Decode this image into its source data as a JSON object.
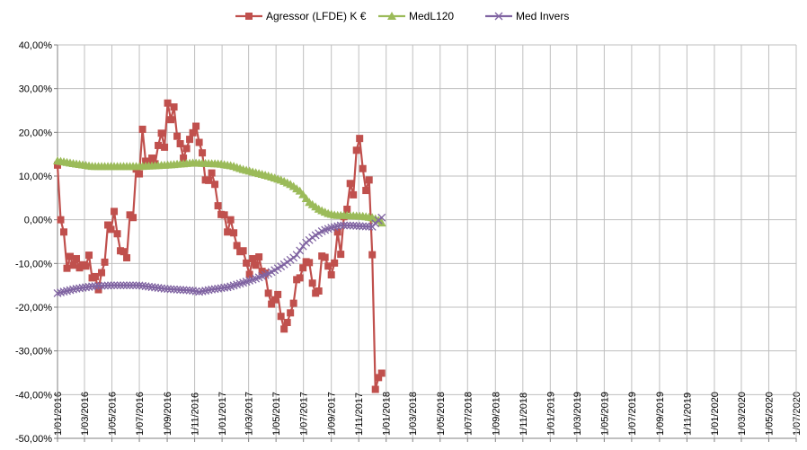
{
  "chart_data": {
    "type": "line",
    "title": "",
    "xlabel": "",
    "ylabel": "",
    "grid": true,
    "legend_position": "top",
    "y_ticks": [
      "40,00%",
      "30,00%",
      "20,00%",
      "10,00%",
      "0,00%",
      "-10,00%",
      "-20,00%",
      "-30,00%",
      "-40,00%",
      "-50,00%"
    ],
    "ylim": [
      -50,
      40
    ],
    "x_ticks": [
      "1/01/2016",
      "1/03/2016",
      "1/05/2016",
      "1/07/2016",
      "1/09/2016",
      "1/11/2016",
      "1/01/2017",
      "1/03/2017",
      "1/05/2017",
      "1/07/2017",
      "1/09/2017",
      "1/11/2017",
      "1/01/2018",
      "1/03/2018",
      "1/05/2018",
      "1/07/2018",
      "1/09/2018",
      "1/11/2018",
      "1/01/2019",
      "1/03/2019",
      "1/05/2019",
      "1/07/2019",
      "1/09/2019",
      "1/11/2019",
      "1/01/2020",
      "1/03/2020",
      "1/05/2020",
      "1/07/2020"
    ],
    "x_start": "2016-01-01",
    "x_end": "2020-07-01",
    "x_unit": "days since 2016-01-01",
    "series": [
      {
        "name": "Agressor (LFDE) K €",
        "color": "#C0504D",
        "marker": "square",
        "points": [
          [
            0,
            12.5
          ],
          [
            7,
            0.0
          ],
          [
            14,
            -2.8
          ],
          [
            21,
            -11.1
          ],
          [
            28,
            -8.4
          ],
          [
            35,
            -10.4
          ],
          [
            42,
            -8.9
          ],
          [
            49,
            -11.0
          ],
          [
            56,
            -10.3
          ],
          [
            63,
            -10.6
          ],
          [
            70,
            -8.1
          ],
          [
            77,
            -13.3
          ],
          [
            84,
            -13.0
          ],
          [
            91,
            -16.0
          ],
          [
            98,
            -12.1
          ],
          [
            105,
            -9.7
          ],
          [
            112,
            -1.2
          ],
          [
            119,
            -2.2
          ],
          [
            126,
            1.9
          ],
          [
            133,
            -3.2
          ],
          [
            140,
            -7.1
          ],
          [
            147,
            -7.3
          ],
          [
            154,
            -8.7
          ],
          [
            161,
            1.1
          ],
          [
            168,
            0.5
          ],
          [
            175,
            11.6
          ],
          [
            182,
            10.5
          ],
          [
            189,
            20.7
          ],
          [
            196,
            13.4
          ],
          [
            203,
            12.4
          ],
          [
            210,
            14.1
          ],
          [
            217,
            12.8
          ],
          [
            224,
            17.0
          ],
          [
            231,
            19.8
          ],
          [
            238,
            16.6
          ],
          [
            245,
            26.7
          ],
          [
            252,
            22.9
          ],
          [
            259,
            25.8
          ],
          [
            266,
            19.1
          ],
          [
            273,
            17.4
          ],
          [
            280,
            14.1
          ],
          [
            287,
            16.3
          ],
          [
            294,
            18.4
          ],
          [
            301,
            19.9
          ],
          [
            308,
            21.4
          ],
          [
            315,
            17.7
          ],
          [
            322,
            15.3
          ],
          [
            329,
            9.1
          ],
          [
            336,
            9.0
          ],
          [
            343,
            10.7
          ],
          [
            350,
            8.1
          ],
          [
            357,
            3.2
          ],
          [
            364,
            1.2
          ],
          [
            371,
            1.1
          ],
          [
            378,
            -2.8
          ],
          [
            385,
            0.0
          ],
          [
            392,
            -3.0
          ],
          [
            399,
            -5.9
          ],
          [
            406,
            -7.3
          ],
          [
            413,
            -7.1
          ],
          [
            420,
            -9.9
          ],
          [
            427,
            -12.5
          ],
          [
            434,
            -8.9
          ],
          [
            441,
            -10.4
          ],
          [
            448,
            -8.5
          ],
          [
            455,
            -11.8
          ],
          [
            462,
            -12.2
          ],
          [
            469,
            -16.8
          ],
          [
            476,
            -19.3
          ],
          [
            483,
            -18.3
          ],
          [
            490,
            -17.1
          ],
          [
            497,
            -22.1
          ],
          [
            504,
            -25.0
          ],
          [
            511,
            -23.5
          ],
          [
            518,
            -21.3
          ],
          [
            525,
            -19.1
          ],
          [
            532,
            -13.7
          ],
          [
            539,
            -13.3
          ],
          [
            546,
            -11.0
          ],
          [
            553,
            -9.6
          ],
          [
            560,
            -9.8
          ],
          [
            567,
            -14.5
          ],
          [
            574,
            -16.8
          ],
          [
            581,
            -16.3
          ],
          [
            588,
            -8.3
          ],
          [
            595,
            -8.6
          ],
          [
            602,
            -10.6
          ],
          [
            609,
            -12.6
          ],
          [
            616,
            -9.9
          ],
          [
            623,
            -2.8
          ],
          [
            630,
            -7.9
          ],
          [
            637,
            0.7
          ],
          [
            644,
            2.4
          ],
          [
            651,
            8.3
          ],
          [
            658,
            5.7
          ],
          [
            665,
            15.9
          ],
          [
            672,
            18.6
          ],
          [
            679,
            11.7
          ],
          [
            686,
            6.7
          ],
          [
            693,
            9.1
          ],
          [
            700,
            -8.0
          ],
          [
            707,
            -38.8
          ],
          [
            714,
            -36.1
          ],
          [
            721,
            -35.1
          ]
        ]
      },
      {
        "name": "MedL120",
        "color": "#9BBB59",
        "marker": "triangle",
        "points": [
          [
            0,
            13.5
          ],
          [
            40,
            12.8
          ],
          [
            80,
            12.2
          ],
          [
            120,
            12.2
          ],
          [
            180,
            12.2
          ],
          [
            240,
            12.5
          ],
          [
            300,
            13.0
          ],
          [
            330,
            12.9
          ],
          [
            360,
            12.8
          ],
          [
            390,
            12.3
          ],
          [
            410,
            11.6
          ],
          [
            440,
            10.8
          ],
          [
            470,
            10.0
          ],
          [
            500,
            9.0
          ],
          [
            520,
            8.0
          ],
          [
            540,
            6.5
          ],
          [
            560,
            4.0
          ],
          [
            580,
            2.5
          ],
          [
            600,
            1.5
          ],
          [
            620,
            1.0
          ],
          [
            640,
            1.0
          ],
          [
            680,
            0.8
          ],
          [
            700,
            0.5
          ],
          [
            713,
            0.0
          ],
          [
            721,
            -0.7
          ]
        ]
      },
      {
        "name": "Med Invers",
        "color": "#8064A2",
        "marker": "cross",
        "points": [
          [
            0,
            -16.8
          ],
          [
            40,
            -15.8
          ],
          [
            80,
            -15.2
          ],
          [
            120,
            -15.0
          ],
          [
            180,
            -15.0
          ],
          [
            240,
            -15.8
          ],
          [
            300,
            -16.2
          ],
          [
            315,
            -16.5
          ],
          [
            340,
            -16.0
          ],
          [
            380,
            -15.4
          ],
          [
            410,
            -14.5
          ],
          [
            440,
            -13.5
          ],
          [
            470,
            -12.3
          ],
          [
            500,
            -10.5
          ],
          [
            530,
            -8.3
          ],
          [
            550,
            -5.5
          ],
          [
            570,
            -3.8
          ],
          [
            590,
            -2.5
          ],
          [
            610,
            -1.8
          ],
          [
            630,
            -1.3
          ],
          [
            650,
            -1.3
          ],
          [
            680,
            -1.5
          ],
          [
            700,
            -1.6
          ],
          [
            710,
            -0.5
          ],
          [
            721,
            0.5
          ]
        ]
      }
    ]
  }
}
